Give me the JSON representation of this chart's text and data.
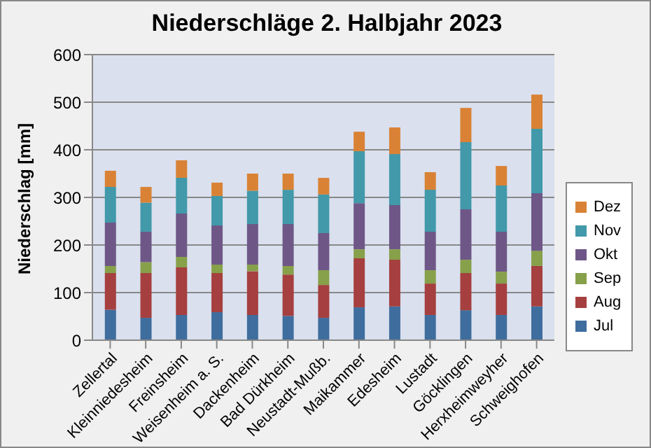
{
  "chart_data": {
    "type": "bar",
    "title": "Niederschläge 2. Halbjahr 2023",
    "ylabel": "Niederschlag [mm]",
    "categories": [
      "Zellertal",
      "Kleinniedesheim",
      "Freinsheim",
      "Weisenheim a. S.",
      "Dackenheim",
      "Bad Dürkheim",
      "Neustadt-Mußb.",
      "Maikammer",
      "Edesheim",
      "Lustadt",
      "Göcklingen",
      "Herxheimweyher",
      "Schweighofen"
    ],
    "series": [
      {
        "name": "Jul",
        "color": "#3f6d9e",
        "values": [
          64,
          47,
          53,
          59,
          53,
          51,
          47,
          69,
          71,
          53,
          63,
          53,
          71
        ]
      },
      {
        "name": "Aug",
        "color": "#a63f3f",
        "values": [
          77,
          94,
          100,
          82,
          92,
          87,
          69,
          103,
          98,
          66,
          78,
          66,
          85
        ]
      },
      {
        "name": "Sep",
        "color": "#87a04a",
        "values": [
          15,
          23,
          22,
          18,
          14,
          18,
          31,
          19,
          22,
          28,
          28,
          25,
          32
        ]
      },
      {
        "name": "Okt",
        "color": "#6e5787",
        "values": [
          91,
          64,
          91,
          82,
          85,
          88,
          78,
          97,
          93,
          81,
          106,
          84,
          121
        ]
      },
      {
        "name": "Nov",
        "color": "#4199aa",
        "values": [
          75,
          61,
          75,
          62,
          70,
          72,
          81,
          109,
          107,
          88,
          141,
          97,
          135
        ]
      },
      {
        "name": "Dez",
        "color": "#d98235",
        "values": [
          34,
          33,
          37,
          28,
          36,
          34,
          35,
          41,
          56,
          37,
          72,
          41,
          72
        ]
      }
    ],
    "stacked": true,
    "ylim": [
      0,
      600
    ],
    "yticks": [
      0,
      100,
      200,
      300,
      400,
      500,
      600
    ],
    "grid": "y",
    "legend": "right"
  }
}
